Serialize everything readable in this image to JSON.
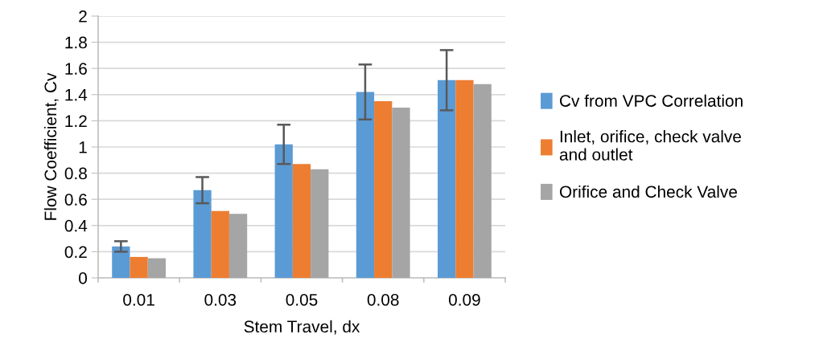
{
  "chart_data": {
    "type": "bar",
    "xlabel": "Stem Travel, dx",
    "ylabel": "Flow Coefficient, Cv",
    "categories": [
      "0.01",
      "0.03",
      "0.05",
      "0.08",
      "0.09"
    ],
    "series": [
      {
        "name": "Cv from VPC Correlation",
        "color": "#5b9bd5",
        "values": [
          0.24,
          0.67,
          1.02,
          1.42,
          1.51
        ],
        "errors": [
          [
            0.2,
            0.28
          ],
          [
            0.57,
            0.77
          ],
          [
            0.87,
            1.17
          ],
          [
            1.21,
            1.63
          ],
          [
            1.28,
            1.74
          ]
        ]
      },
      {
        "name": "Inlet, orifice, check valve\nand outlet",
        "color": "#ed7d31",
        "values": [
          0.16,
          0.51,
          0.87,
          1.35,
          1.51
        ]
      },
      {
        "name": "Orifice and Check Valve",
        "color": "#a5a5a5",
        "values": [
          0.15,
          0.49,
          0.83,
          1.3,
          1.48
        ]
      }
    ],
    "ylim": [
      0,
      2
    ],
    "yticks": [
      0,
      0.2,
      0.4,
      0.6,
      0.8,
      1,
      1.2,
      1.4,
      1.6,
      1.8,
      2
    ],
    "grid": "y",
    "legend": "right"
  }
}
